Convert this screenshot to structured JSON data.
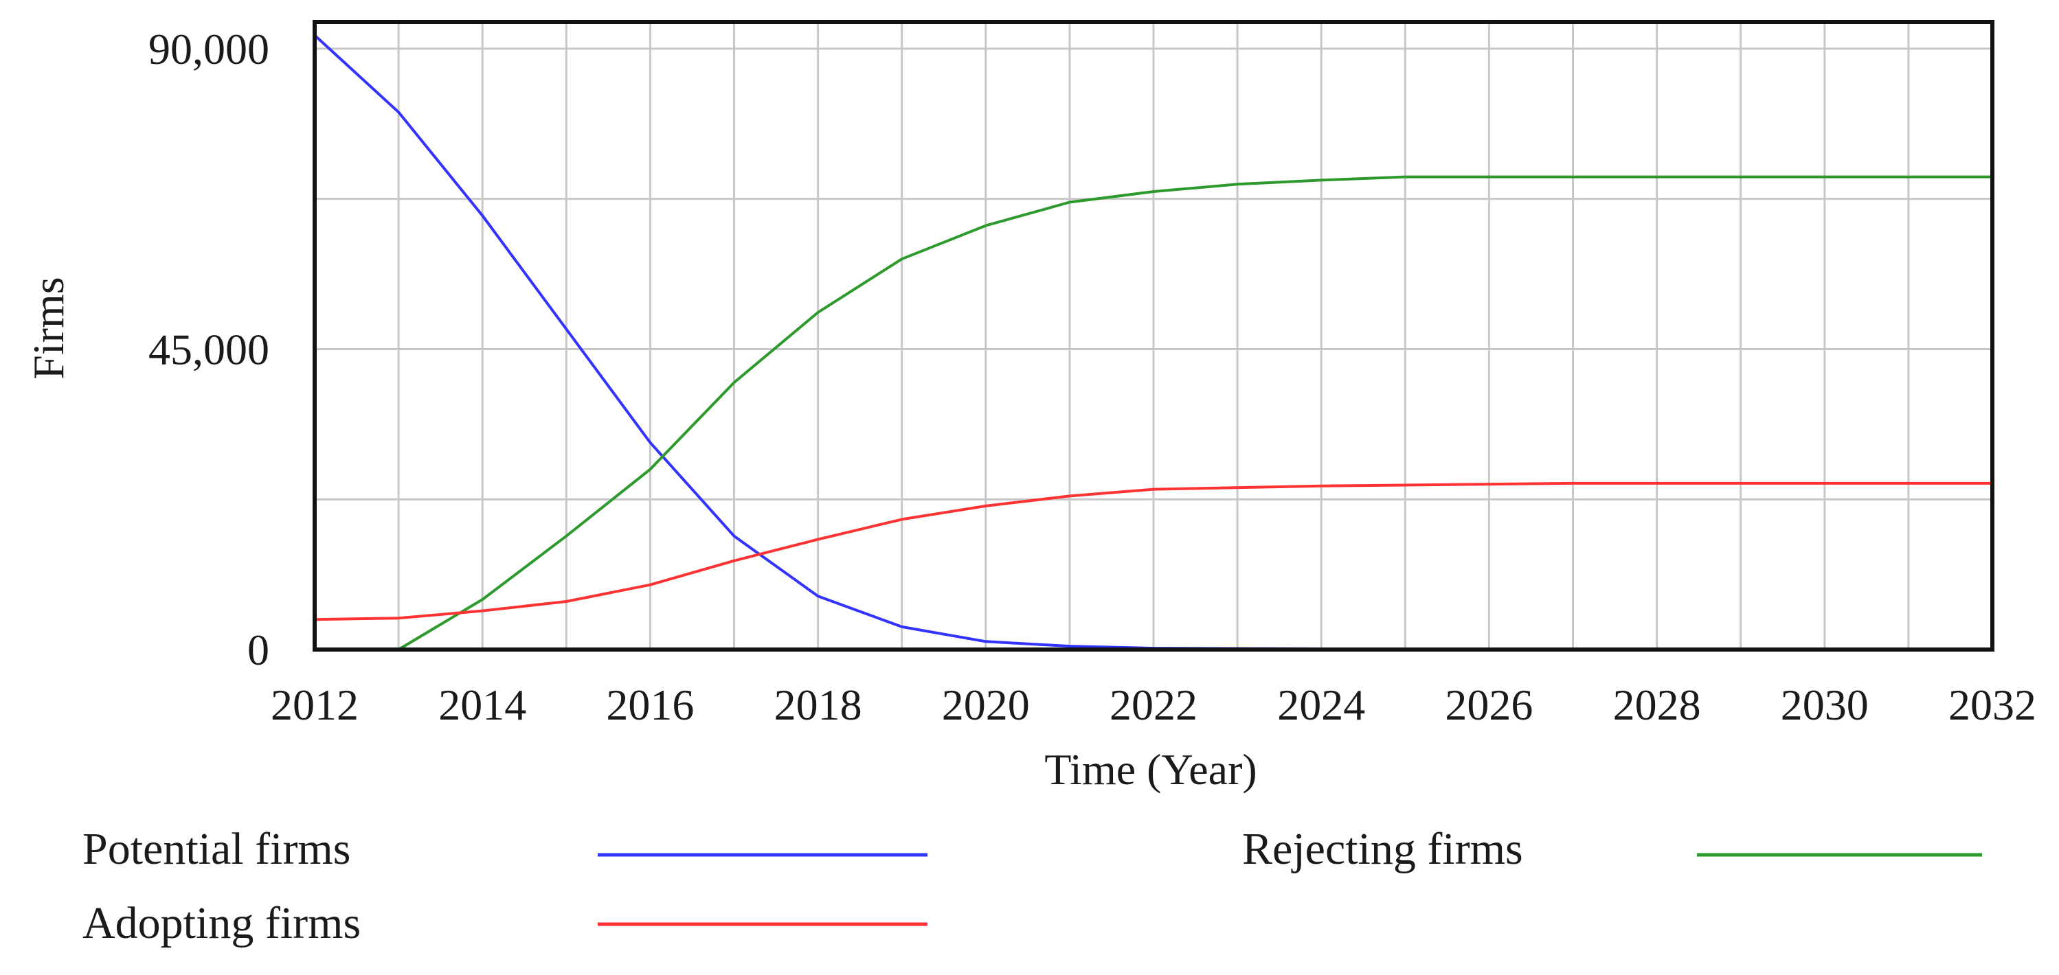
{
  "colors": {
    "potential": "#3333ff",
    "rejecting": "#2e9a2e",
    "adopting": "#ff3333",
    "grid": "#c8c8c8",
    "frame": "#111111"
  },
  "chart_data": {
    "type": "line",
    "xlabel": "Time (Year)",
    "ylabel": "Firms",
    "xlim": [
      2012,
      2032
    ],
    "ylim": [
      0,
      94000
    ],
    "x_ticks": [
      "2012",
      "2014",
      "2016",
      "2018",
      "2020",
      "2022",
      "2024",
      "2026",
      "2028",
      "2030",
      "2032"
    ],
    "y_ticks": [
      {
        "value": 90000,
        "label": "90,000"
      },
      {
        "value": 45000,
        "label": "45,000"
      },
      {
        "value": 0,
        "label": "0"
      }
    ],
    "grid": true,
    "legend_position": "bottom",
    "series": [
      {
        "name": "Potential firms",
        "color": "#3333ff",
        "x": [
          2012,
          2013,
          2014,
          2015,
          2016,
          2017,
          2018,
          2019,
          2020,
          2021,
          2022,
          2024,
          2028,
          2032
        ],
        "y": [
          92000,
          80500,
          65000,
          48000,
          31000,
          17000,
          8000,
          3400,
          1200,
          500,
          200,
          100,
          0,
          0
        ]
      },
      {
        "name": "Rejecting firms",
        "color": "#2e9a2e",
        "x": [
          2012,
          2013,
          2014,
          2015,
          2016,
          2017,
          2018,
          2019,
          2020,
          2021,
          2022,
          2023,
          2024,
          2025,
          2028,
          2032
        ],
        "y": [
          0,
          0,
          7500,
          17000,
          27000,
          40000,
          50500,
          58500,
          63500,
          67000,
          68600,
          69700,
          70300,
          70800,
          70800,
          70800
        ]
      },
      {
        "name": "Adopting firms",
        "color": "#ff3333",
        "x": [
          2012,
          2013,
          2014,
          2015,
          2016,
          2017,
          2018,
          2019,
          2020,
          2021,
          2022,
          2024,
          2027,
          2032
        ],
        "y": [
          4500,
          4700,
          5800,
          7200,
          9700,
          13300,
          16500,
          19500,
          21500,
          23000,
          24000,
          24500,
          24900,
          24900
        ]
      }
    ]
  }
}
